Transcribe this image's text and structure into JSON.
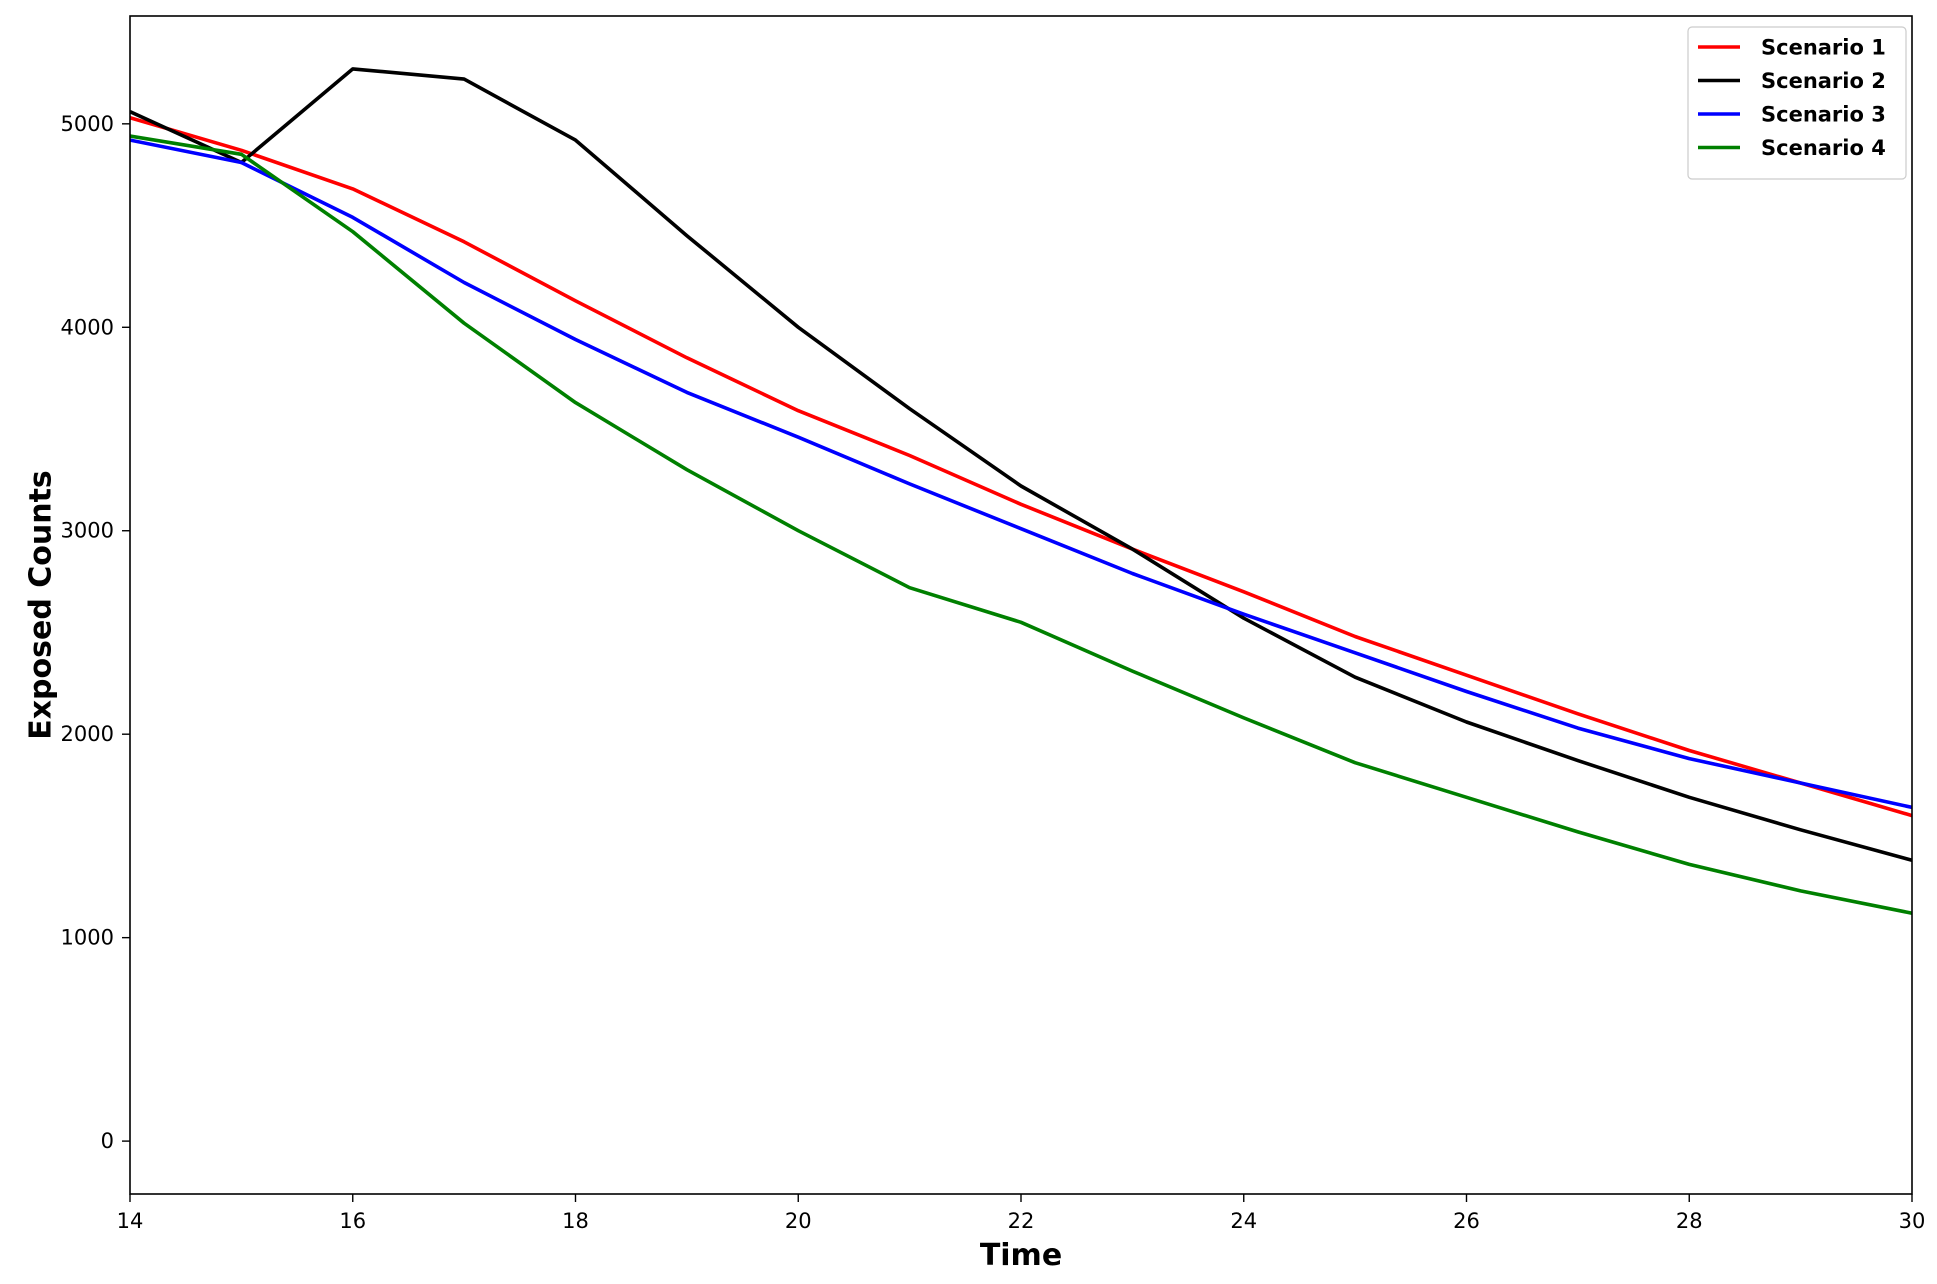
{
  "chart_data": {
    "type": "line",
    "title": "",
    "xlabel": "Time",
    "ylabel": "Exposed Counts",
    "xlim": [
      14,
      30
    ],
    "ylim": [
      -260,
      5530
    ],
    "xticks": [
      14,
      16,
      18,
      20,
      22,
      24,
      26,
      28,
      30
    ],
    "yticks": [
      0,
      1000,
      2000,
      3000,
      4000,
      5000
    ],
    "grid": false,
    "legend_position": "top-right",
    "x": [
      14,
      15,
      16,
      17,
      18,
      19,
      20,
      21,
      22,
      23,
      24,
      25,
      26,
      27,
      28,
      29,
      30
    ],
    "series": [
      {
        "name": "Scenario 1",
        "color": "#ff0000",
        "values": [
          5030,
          4870,
          4680,
          4420,
          4130,
          3850,
          3590,
          3370,
          3130,
          2910,
          2700,
          2480,
          2290,
          2100,
          1920,
          1760,
          1600
        ]
      },
      {
        "name": "Scenario 2",
        "color": "#000000",
        "values": [
          5060,
          4810,
          5270,
          5220,
          4920,
          4450,
          4000,
          3600,
          3220,
          2910,
          2570,
          2280,
          2060,
          1870,
          1690,
          1530,
          1380
        ]
      },
      {
        "name": "Scenario 3",
        "color": "#0000ff",
        "values": [
          4920,
          4810,
          4540,
          4220,
          3940,
          3680,
          3460,
          3230,
          3010,
          2790,
          2590,
          2400,
          2210,
          2030,
          1880,
          1760,
          1640
        ]
      },
      {
        "name": "Scenario 4",
        "color": "#008000",
        "values": [
          4940,
          4850,
          4470,
          4020,
          3630,
          3300,
          3000,
          2720,
          2550,
          2310,
          2080,
          1860,
          1690,
          1520,
          1360,
          1230,
          1120
        ]
      }
    ]
  }
}
